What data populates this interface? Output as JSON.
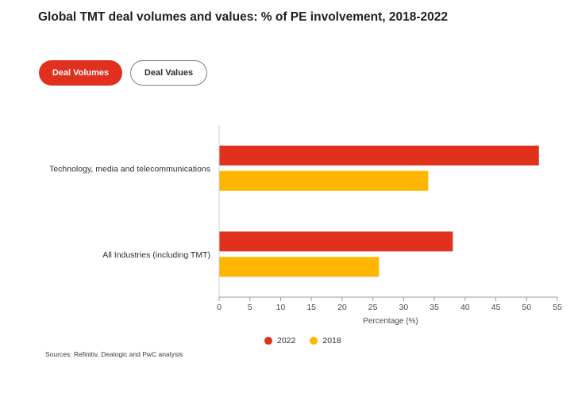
{
  "page": {
    "title": "Global TMT deal volumes and values: % of PE involvement, 2018-2022",
    "source": "Sources: Refinitiv, Dealogic and PwC analysis"
  },
  "toggles": [
    {
      "label": "Deal Volumes",
      "active": true
    },
    {
      "label": "Deal Values",
      "active": false
    }
  ],
  "colors": {
    "accent": "#e0301e",
    "series_2022": "#e0301e",
    "series_2018": "#ffb600"
  },
  "chart_data": {
    "type": "bar",
    "orientation": "horizontal",
    "categories": [
      "Technology, media and telecommunications",
      "All Industries (including TMT)"
    ],
    "series": [
      {
        "name": "2022",
        "values": [
          52,
          38
        ],
        "color": "#e0301e"
      },
      {
        "name": "2018",
        "values": [
          34,
          26
        ],
        "color": "#ffb600"
      }
    ],
    "xlabel": "Percentage (%)",
    "xlim": [
      0,
      55
    ],
    "xticks": [
      "0",
      "5",
      "10",
      "15",
      "20",
      "25",
      "30",
      "35",
      "40",
      "45",
      "50",
      "55"
    ],
    "grid": false,
    "legend": "bottom-center"
  }
}
